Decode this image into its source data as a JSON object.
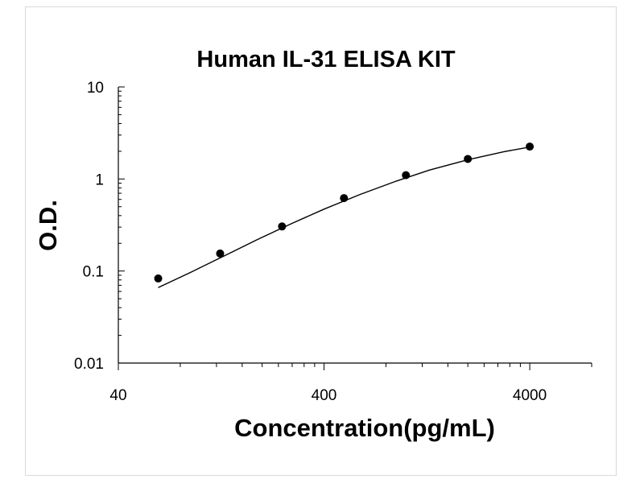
{
  "chart_data": {
    "type": "scatter",
    "title": "Human IL-31 ELISA KIT",
    "xlabel": "Concentration(pg/mL)",
    "ylabel": "O.D.",
    "x_scale": "log",
    "y_scale": "log",
    "xlim": [
      40,
      8000
    ],
    "ylim": [
      0.01,
      10
    ],
    "x_ticks": [
      {
        "value": 40,
        "label": "40"
      },
      {
        "value": 400,
        "label": "400"
      },
      {
        "value": 4000,
        "label": "4000"
      }
    ],
    "y_ticks": [
      {
        "value": 10,
        "label": "10"
      },
      {
        "value": 1,
        "label": "1"
      },
      {
        "value": 0.1,
        "label": "0.1"
      },
      {
        "value": 0.01,
        "label": "0.01"
      }
    ],
    "grid": false,
    "legend": "none",
    "series": [
      {
        "x": [
          62.5,
          125,
          250,
          500,
          1000,
          2000,
          4000
        ],
        "y": [
          0.083,
          0.155,
          0.305,
          0.62,
          1.1,
          1.65,
          2.25
        ]
      }
    ],
    "fit_curve": {
      "x": [
        62.5,
        90,
        130,
        190,
        280,
        400,
        600,
        900,
        1300,
        2000,
        3000,
        4000
      ],
      "y": [
        0.066,
        0.097,
        0.145,
        0.22,
        0.33,
        0.47,
        0.68,
        0.95,
        1.25,
        1.62,
        1.98,
        2.22
      ]
    },
    "colors": {
      "marker": "#000000",
      "line": "#000000",
      "axis": "#000000"
    }
  }
}
